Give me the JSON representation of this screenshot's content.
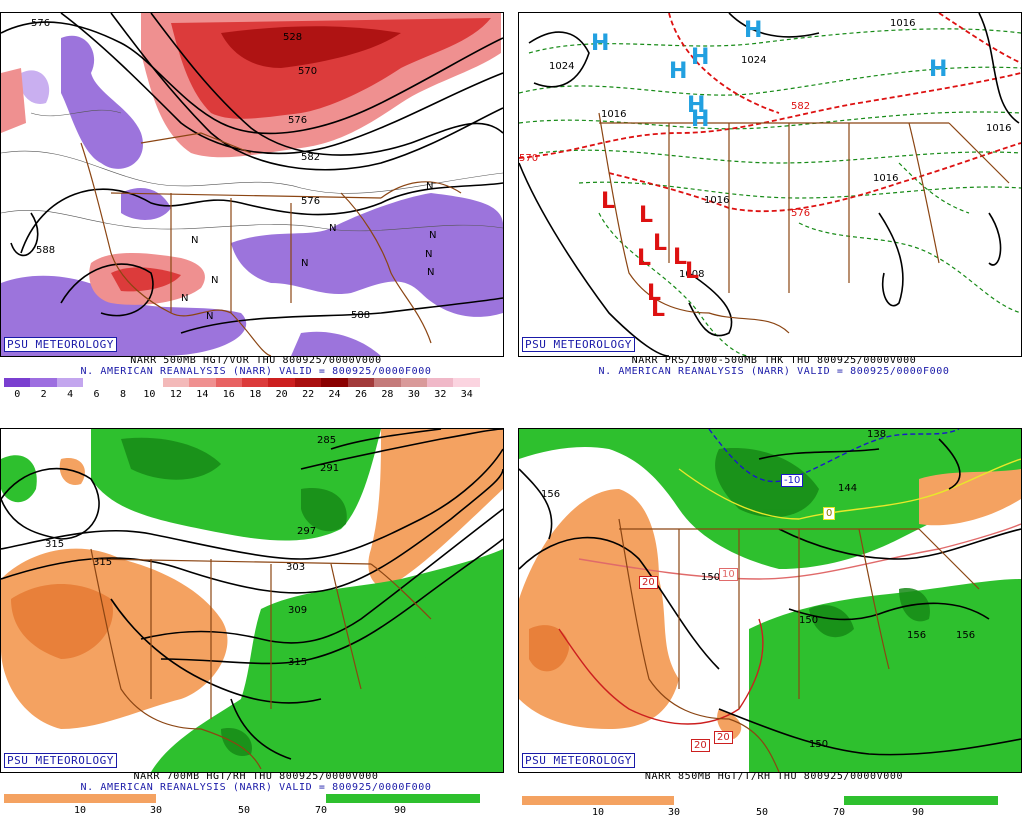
{
  "panels": [
    {
      "psu": "PSU METEOROLOGY",
      "title": "NARR 500MB HGT/VOR THU 800925/0000V000",
      "subtitle": "N. AMERICAN REANALYSIS (NARR) VALID = 800925/0000F000",
      "legend_ticks": [
        "0",
        "2",
        "4",
        "6",
        "8",
        "10",
        "12",
        "14",
        "16",
        "18",
        "20",
        "22",
        "24",
        "26",
        "28",
        "30",
        "32",
        "34"
      ],
      "legend_colors": [
        "#7a3fd0",
        "#9d6ee0",
        "#c3a6ee",
        "#ffffff",
        "#ffffff",
        "#ffffff",
        "#f3b9b9",
        "#ef9090",
        "#e86262",
        "#dc3b3b",
        "#cc1f1f",
        "#aa0f0f",
        "#8a0000",
        "#a23a3a",
        "#c47a7a",
        "#d99a9a",
        "#f0b8c8",
        "#fbd4e0"
      ],
      "contour_labels": [
        "576",
        "528",
        "570",
        "576",
        "582",
        "588",
        "588",
        "576"
      ],
      "vort_symbols": [
        "N",
        "N",
        "N",
        "N",
        "N",
        "N",
        "N",
        "N",
        "N",
        "N"
      ]
    },
    {
      "psu": "PSU METEOROLOGY",
      "title": "NARR PRS/1000-500MB THK THU 800925/0000V000",
      "subtitle": "N. AMERICAN REANALYSIS (NARR) VALID = 800925/0000F000",
      "contour_labels": [
        "1024",
        "1016",
        "1024",
        "1016",
        "1016",
        "1016",
        "1016",
        "570",
        "576",
        "582",
        "1008"
      ],
      "high_symbol": "H",
      "low_symbol": "L"
    },
    {
      "psu": "PSU METEOROLOGY",
      "title": "NARR 700MB HGT/RH THU 800925/0000V000",
      "subtitle": "N. AMERICAN REANALYSIS (NARR) VALID = 800925/0000F000",
      "legend_ticks": [
        "10",
        "30",
        "50",
        "70",
        "90"
      ],
      "contour_labels": [
        "285",
        "291",
        "297",
        "303",
        "309",
        "315",
        "315",
        "315"
      ]
    },
    {
      "psu": "PSU METEOROLOGY",
      "title": "NARR 850MB HGT/T/RH THU 800925/0000V000",
      "legend_ticks": [
        "10",
        "30",
        "50",
        "70",
        "90"
      ],
      "contour_labels": [
        "156",
        "150",
        "156",
        "144",
        "150",
        "156",
        "150",
        "138"
      ],
      "temp_labels": [
        "-10",
        "0",
        "10",
        "20",
        "20",
        "20"
      ]
    }
  ],
  "colors": {
    "orange": "#f4a261",
    "orange_dark": "#e8803a",
    "green": "#2ec02e",
    "green_dark": "#168a16",
    "purple": "#8b5cd6",
    "red": "#e85050",
    "border_brown": "#8b4513",
    "psu_blue": "#1a1aa8"
  }
}
